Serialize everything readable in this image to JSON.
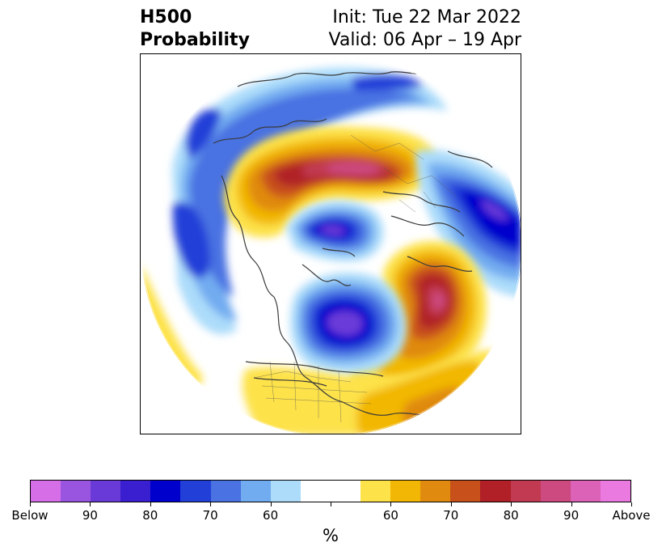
{
  "title": {
    "left_line1": "H500",
    "left_line2": "Probability",
    "right_line1": "Init: Tue 22 Mar 2022",
    "right_line2": "Valid: 06 Apr – 19 Apr"
  },
  "colorbar": {
    "colors": [
      "#d66ee8",
      "#9a55e0",
      "#6a3ad8",
      "#3a1fd0",
      "#0000cc",
      "#2240d8",
      "#4a72e2",
      "#72acf0",
      "#acdcfa",
      "#ffffff",
      "#ffffff",
      "#fde24a",
      "#f2b705",
      "#e08a10",
      "#c8501a",
      "#b02026",
      "#c23a52",
      "#cc4a80",
      "#dc62b8",
      "#ea7ae0"
    ],
    "labels": [
      "Below",
      "90",
      "80",
      "70",
      "60",
      "",
      "60",
      "70",
      "80",
      "90",
      "Above"
    ],
    "unit": "%"
  }
}
